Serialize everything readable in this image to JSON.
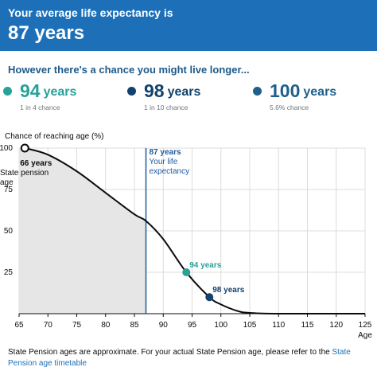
{
  "banner": {
    "lead": "Your average life expectancy is",
    "value": "87 years"
  },
  "subtitle": "However there's a chance you might live longer...",
  "stats": [
    {
      "value": "94",
      "unit": "years",
      "chance": "1 in 4 chance",
      "color": "#28a197"
    },
    {
      "value": "98",
      "unit": "years",
      "chance": "1 in 10 chance",
      "color": "#12436d"
    },
    {
      "value": "100",
      "unit": "years",
      "chance": "5.6% chance",
      "color": "#1f5f8b"
    }
  ],
  "footnote": {
    "text": "State Pension ages are approximate. For your actual State Pension age, please refer to the ",
    "link": "State Pension age timetable"
  },
  "chart_data": {
    "type": "line",
    "ylabel": "Chance of reaching age (%)",
    "xlabel": "Age",
    "xlim": [
      65,
      125
    ],
    "ylim": [
      0,
      100
    ],
    "xticks": [
      65,
      70,
      75,
      80,
      85,
      90,
      95,
      100,
      105,
      110,
      115,
      120,
      125
    ],
    "yticks": [
      25,
      50,
      75,
      100
    ],
    "grid": true,
    "series": [
      {
        "x": [
          66,
          70,
          75,
          80,
          85,
          87,
          90,
          94,
          98,
          100,
          103,
          105,
          110,
          125
        ],
        "y": [
          100,
          96,
          86,
          73,
          60,
          56,
          45,
          25,
          10,
          5.6,
          1.5,
          0.5,
          0,
          0
        ]
      }
    ],
    "markers": [
      {
        "x": 66,
        "y": 100,
        "label": "66 years",
        "sublabel": "State pension age",
        "style": "hollow",
        "color": "#0b0c0c"
      },
      {
        "x": 94,
        "y": 25,
        "label": "94 years",
        "color": "#28a197"
      },
      {
        "x": 98,
        "y": 10,
        "label": "98 years",
        "color": "#12436d"
      }
    ],
    "reference_line": {
      "x": 87,
      "label": "87 years",
      "sublabel": "Your life expectancy",
      "color": "#1d5a9e"
    }
  }
}
